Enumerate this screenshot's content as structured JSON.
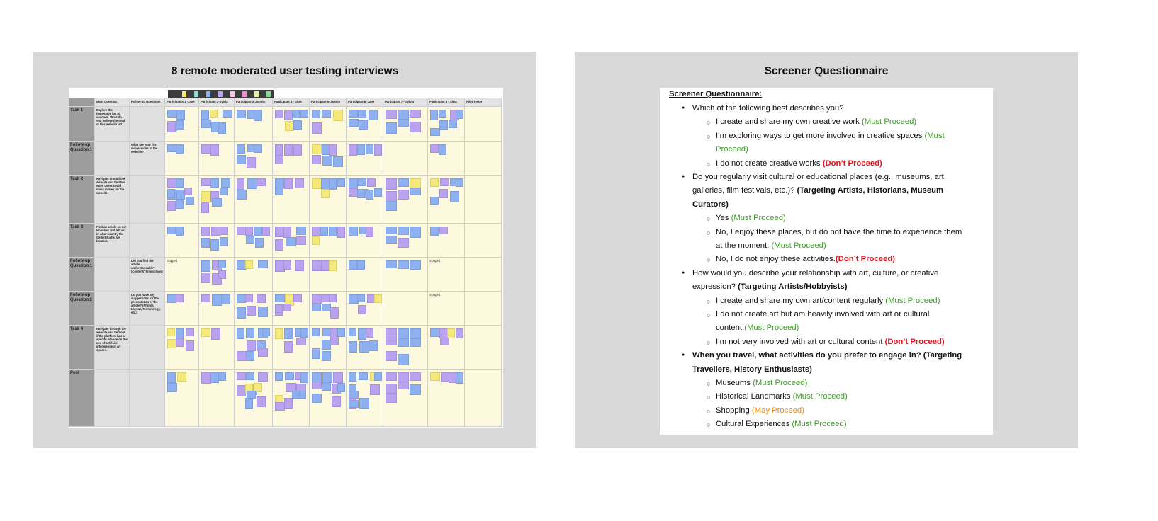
{
  "left": {
    "title": "8 remote moderated user testing interviews",
    "legend_colors": [
      "#f4e97a",
      "#8fe0d8",
      "#8fb0f0",
      "#b9a3f0",
      "#f7c4e4",
      "#f08ad6",
      "#e8f0a0",
      "#7fe08a"
    ],
    "columns": [
      "",
      "Main Question",
      "Follow-up Questions",
      "Participants 1 -Jane",
      "Participant 2-Sylvia",
      "Participant 3-Jasmin",
      "Participant 4 - Shas",
      "Participant 5-Jasmin",
      "Participant 6 -Jane",
      "Participant 7 - Sylvia",
      "Participant 8 - Shas",
      "Pilot Tester"
    ],
    "rows": [
      {
        "label": "Task 1",
        "main": "Explore the homepage for 30 seconds. What do you believe the goal of this website is?",
        "follow": ""
      },
      {
        "label": "Follow-up Question 1",
        "main": "",
        "follow": "What are your first impressions of the website?"
      },
      {
        "label": "Task 2",
        "main": "Navigate around the website and find two ways users could make money on the website.",
        "follow": ""
      },
      {
        "label": "Task 3",
        "main": "Find an article on Art Nouveau and tell us in what country the Gellert Baths are located.",
        "follow": ""
      },
      {
        "label": "Follow-up Question 1",
        "main": "",
        "follow": "Did you find the article understandable? (Content/Terminology)"
      },
      {
        "label": "Follow-up Question 2",
        "main": "",
        "follow": "Do you have any suggestions for the presentation of the article? (Photos, Layout, Terminology, etc.)"
      },
      {
        "label": "Task 4",
        "main": "Navigate through the website and find out if the platform has a specific stance on the use of artificial intelligence in art spaces.",
        "follow": ""
      },
      {
        "label": "Post",
        "main": "",
        "follow": ""
      }
    ],
    "skipped_label": "Skipped",
    "note_colors": {
      "blue": "#8fb0f0",
      "purple": "#b9a3f0",
      "yellow": "#f4e97a"
    }
  },
  "right": {
    "title": "Screener Questionnaire",
    "doc_heading": "Screener Questionnaire:",
    "lines": [
      {
        "level": 1,
        "segs": [
          {
            "t": "Which of the following best describes you?",
            "c": ""
          }
        ]
      },
      {
        "level": 2,
        "segs": [
          {
            "t": "I create and share my own creative work ",
            "c": ""
          },
          {
            "t": "(Must Proceed)",
            "c": "g"
          }
        ]
      },
      {
        "level": 2,
        "segs": [
          {
            "t": "I’m exploring ways to get more involved in creative spaces ",
            "c": ""
          },
          {
            "t": "(Must",
            "c": "g"
          }
        ]
      },
      {
        "level": 0,
        "indent": 2,
        "segs": [
          {
            "t": "Proceed)",
            "c": "g"
          }
        ]
      },
      {
        "level": 2,
        "segs": [
          {
            "t": "I do not create creative works ",
            "c": ""
          },
          {
            "t": "(Don’t Proceed)",
            "c": "r"
          }
        ]
      },
      {
        "level": 1,
        "segs": [
          {
            "t": "Do you regularly visit cultural or educational places (e.g., museums, art",
            "c": ""
          }
        ]
      },
      {
        "level": 0,
        "indent": 1,
        "segs": [
          {
            "t": "galleries, film festivals, etc.)? ",
            "c": ""
          },
          {
            "t": "(Targeting Artists, Historians, Museum",
            "c": "b"
          }
        ]
      },
      {
        "level": 0,
        "indent": 1,
        "segs": [
          {
            "t": "Curators)",
            "c": "b"
          }
        ]
      },
      {
        "level": 2,
        "segs": [
          {
            "t": "Yes ",
            "c": ""
          },
          {
            "t": "(Must Proceed)",
            "c": "g"
          }
        ]
      },
      {
        "level": 2,
        "segs": [
          {
            "t": "No, I enjoy these places, but do not have the time to experience them",
            "c": ""
          }
        ]
      },
      {
        "level": 0,
        "indent": 2,
        "segs": [
          {
            "t": "at the moment. ",
            "c": ""
          },
          {
            "t": "(Must Proceed)",
            "c": "g"
          }
        ]
      },
      {
        "level": 2,
        "segs": [
          {
            "t": "No, I do not enjoy these activities.",
            "c": ""
          },
          {
            "t": "(Don’t Proceed)",
            "c": "r"
          }
        ]
      },
      {
        "level": 1,
        "segs": [
          {
            "t": "How would you describe your relationship with art, culture, or creative",
            "c": ""
          }
        ]
      },
      {
        "level": 0,
        "indent": 1,
        "segs": [
          {
            "t": "expression? ",
            "c": ""
          },
          {
            "t": "(Targeting Artists/Hobbyists)",
            "c": "b"
          }
        ]
      },
      {
        "level": 2,
        "segs": [
          {
            "t": "I create and share my own art/content regularly ",
            "c": ""
          },
          {
            "t": "(Must Proceed)",
            "c": "g"
          }
        ]
      },
      {
        "level": 2,
        "segs": [
          {
            "t": "I do not create art but am heavily involved with art or cultural",
            "c": ""
          }
        ]
      },
      {
        "level": 0,
        "indent": 2,
        "segs": [
          {
            "t": "content.",
            "c": ""
          },
          {
            "t": "(Must Proceed)",
            "c": "g"
          }
        ]
      },
      {
        "level": 2,
        "segs": [
          {
            "t": "I’m not very involved with art or cultural content ",
            "c": ""
          },
          {
            "t": "(Don’t Proceed)",
            "c": "r"
          }
        ]
      },
      {
        "level": 1,
        "segs": [
          {
            "t": "When you travel, what activities do you prefer to engage in? (Targeting",
            "c": "b"
          }
        ]
      },
      {
        "level": 0,
        "indent": 1,
        "segs": [
          {
            "t": "Travellers, History Enthusiasts)",
            "c": "b"
          }
        ]
      },
      {
        "level": 2,
        "segs": [
          {
            "t": "Museums ",
            "c": ""
          },
          {
            "t": "(Must Proceed)",
            "c": "g"
          }
        ]
      },
      {
        "level": 2,
        "segs": [
          {
            "t": "Historical Landmarks ",
            "c": ""
          },
          {
            "t": "(Must Proceed)",
            "c": "g"
          }
        ]
      },
      {
        "level": 2,
        "segs": [
          {
            "t": "Shopping ",
            "c": ""
          },
          {
            "t": "(May Proceed)",
            "c": "o"
          }
        ]
      },
      {
        "level": 2,
        "segs": [
          {
            "t": "Cultural Experiences ",
            "c": ""
          },
          {
            "t": "(Must Proceed)",
            "c": "g"
          }
        ]
      }
    ]
  }
}
